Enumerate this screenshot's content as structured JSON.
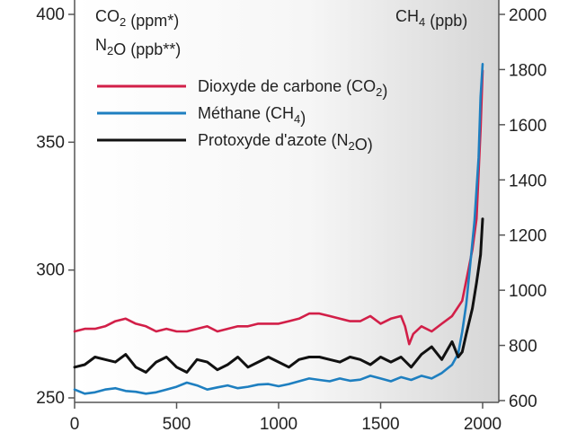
{
  "chart_data": {
    "type": "line",
    "title": "",
    "xlabel": "",
    "x_ticks": [
      0,
      500,
      1000,
      1500,
      2000
    ],
    "xlim": [
      0,
      2000
    ],
    "left_axis": {
      "label_line1": "CO2 (ppm*)",
      "label_line2": "N2O (ppb**)",
      "ticks": [
        250,
        300,
        350,
        400
      ],
      "ylim": [
        250,
        400
      ]
    },
    "right_axis": {
      "label": "CH4 (ppb)",
      "ticks": [
        600,
        800,
        1000,
        1200,
        1400,
        1600,
        1800,
        2000
      ],
      "ylim": [
        600,
        2000
      ]
    },
    "series": [
      {
        "name": "Dioxyde de carbone (CO2)",
        "color": "#d21f48",
        "axis": "left",
        "x": [
          0,
          50,
          100,
          150,
          200,
          250,
          300,
          350,
          400,
          450,
          500,
          550,
          600,
          650,
          700,
          750,
          800,
          850,
          900,
          950,
          1000,
          1050,
          1100,
          1150,
          1200,
          1250,
          1300,
          1350,
          1400,
          1450,
          1500,
          1550,
          1600,
          1620,
          1640,
          1660,
          1700,
          1750,
          1800,
          1850,
          1900,
          1930,
          1950,
          1970,
          1990,
          2000
        ],
        "values": [
          276,
          277,
          277,
          278,
          280,
          281,
          279,
          278,
          276,
          277,
          276,
          276,
          277,
          278,
          276,
          277,
          278,
          278,
          279,
          279,
          279,
          280,
          281,
          283,
          283,
          282,
          281,
          280,
          280,
          282,
          279,
          281,
          282,
          278,
          271,
          275,
          278,
          276,
          279,
          282,
          288,
          300,
          308,
          320,
          355,
          378
        ]
      },
      {
        "name": "Méthane (CH4)",
        "color": "#1e7fc0",
        "axis": "right",
        "x": [
          0,
          50,
          100,
          150,
          200,
          250,
          300,
          350,
          400,
          450,
          500,
          550,
          600,
          650,
          700,
          750,
          800,
          850,
          900,
          950,
          1000,
          1050,
          1100,
          1150,
          1200,
          1250,
          1300,
          1350,
          1400,
          1450,
          1500,
          1550,
          1600,
          1650,
          1700,
          1750,
          1800,
          1850,
          1880,
          1900,
          1920,
          1940,
          1960,
          1980,
          1990,
          2000
        ],
        "values": [
          640,
          625,
          630,
          640,
          645,
          635,
          632,
          625,
          630,
          640,
          650,
          665,
          655,
          640,
          648,
          655,
          645,
          650,
          658,
          660,
          652,
          660,
          670,
          680,
          675,
          670,
          680,
          672,
          676,
          690,
          680,
          670,
          685,
          675,
          690,
          680,
          700,
          730,
          770,
          850,
          950,
          1100,
          1250,
          1480,
          1700,
          1820
        ]
      },
      {
        "name": "Protoxyde d'azote (N2O)",
        "color": "#111111",
        "axis": "left",
        "x": [
          0,
          50,
          100,
          150,
          200,
          250,
          300,
          350,
          400,
          450,
          500,
          550,
          600,
          650,
          700,
          750,
          800,
          850,
          900,
          950,
          1000,
          1050,
          1100,
          1150,
          1200,
          1250,
          1300,
          1350,
          1400,
          1450,
          1500,
          1550,
          1600,
          1650,
          1700,
          1750,
          1800,
          1850,
          1880,
          1900,
          1920,
          1950,
          1970,
          1990,
          2000
        ],
        "values": [
          262,
          263,
          266,
          265,
          264,
          267,
          262,
          260,
          264,
          266,
          262,
          260,
          265,
          264,
          261,
          263,
          266,
          262,
          264,
          266,
          264,
          262,
          265,
          266,
          266,
          265,
          264,
          266,
          265,
          263,
          266,
          264,
          266,
          262,
          267,
          270,
          265,
          272,
          266,
          268,
          275,
          285,
          295,
          306,
          320
        ]
      }
    ],
    "legend": {
      "placement": "top-left",
      "entries": [
        {
          "name": "Dioxyde de carbone (CO2)",
          "color": "#d21f48"
        },
        {
          "name": "Méthane (CH4)",
          "color": "#1e7fc0"
        },
        {
          "name": "Protoxyde d'azote (N2O)",
          "color": "#111111"
        }
      ]
    }
  }
}
